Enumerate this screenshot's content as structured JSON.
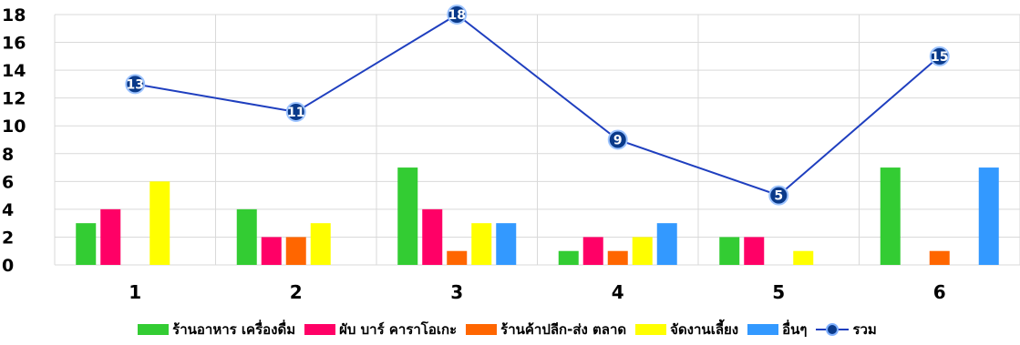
{
  "chart_data": {
    "type": "bar",
    "categories": [
      "1",
      "2",
      "3",
      "4",
      "5",
      "6"
    ],
    "ylim": [
      0,
      18
    ],
    "yticks": [
      0,
      2,
      4,
      6,
      8,
      10,
      12,
      14,
      16,
      18
    ],
    "grid": true,
    "legend_position": "bottom",
    "series": [
      {
        "name": "ร้านอาหาร เครื่องดื่ม",
        "type": "bar",
        "color": "#33cc33",
        "values": [
          3,
          4,
          7,
          1,
          2,
          7
        ]
      },
      {
        "name": "ผับ บาร์ คาราโอเกะ",
        "type": "bar",
        "color": "#ff0066",
        "values": [
          4,
          2,
          4,
          2,
          2,
          0
        ]
      },
      {
        "name": "ร้านค้าปลีก-ส่ง ตลาด",
        "type": "bar",
        "color": "#ff6600",
        "values": [
          0,
          2,
          1,
          1,
          0,
          1
        ]
      },
      {
        "name": "จัดงานเลี้ยง",
        "type": "bar",
        "color": "#ffff00",
        "values": [
          6,
          3,
          3,
          2,
          1,
          0
        ]
      },
      {
        "name": "อื่นๆ",
        "type": "bar",
        "color": "#3399ff",
        "values": [
          0,
          0,
          3,
          3,
          0,
          7
        ]
      },
      {
        "name": "รวม",
        "type": "line",
        "color": "#1f3fbf",
        "marker_color": "#0a3a8a",
        "values": [
          13,
          11,
          18,
          9,
          5,
          15
        ]
      }
    ]
  }
}
